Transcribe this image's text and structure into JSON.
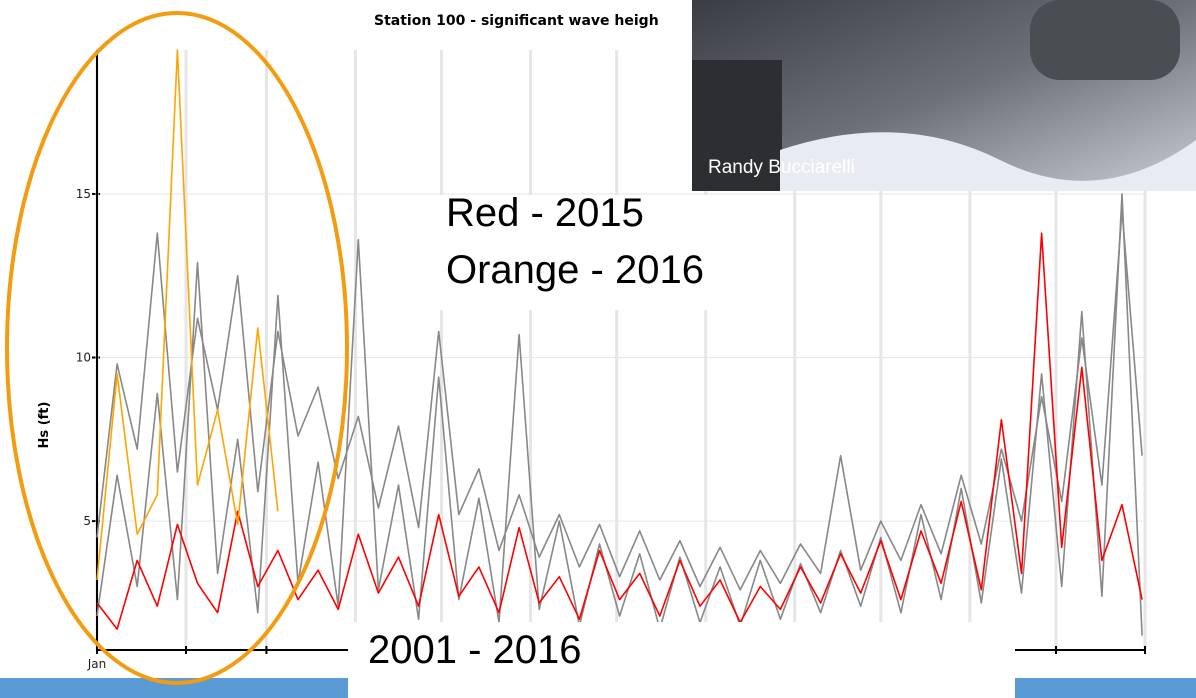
{
  "chart_data": {
    "type": "line",
    "title": "Station 100 - significant wave heigh",
    "y_label": "Hs (ft)",
    "x": [
      0,
      7,
      14,
      21,
      28,
      35,
      42,
      49,
      56,
      63,
      70,
      77,
      84,
      91,
      98,
      105,
      112,
      119,
      126,
      133,
      140,
      147,
      154,
      161,
      168,
      175,
      182,
      189,
      196,
      203,
      210,
      217,
      224,
      231,
      238,
      245,
      252,
      259,
      266,
      273,
      280,
      287,
      294,
      301,
      308,
      315,
      322,
      329,
      336,
      343,
      350,
      357,
      364
    ],
    "xlim": [
      0,
      365
    ],
    "xticks": [
      {
        "value": 0,
        "label": "Jan"
      },
      {
        "value": 31,
        "label": null
      },
      {
        "value": 59,
        "label": null
      },
      {
        "value": 90,
        "label": null
      },
      {
        "value": 120,
        "label": null
      },
      {
        "value": 151,
        "label": null
      },
      {
        "value": 181,
        "label": null
      },
      {
        "value": 212,
        "label": null
      },
      {
        "value": 243,
        "label": null
      },
      {
        "value": 273,
        "label": null
      },
      {
        "value": 304,
        "label": null
      },
      {
        "value": 334,
        "label": null
      },
      {
        "value": 365,
        "label": null
      }
    ],
    "ylim": [
      1.06,
      19.4
    ],
    "yticks": [
      5,
      10,
      15
    ],
    "grid": true,
    "series": [
      {
        "color": "#888888",
        "values": [
          4.5,
          9.8,
          7.2,
          13.8,
          6.5,
          11.2,
          8.4,
          12.5,
          5.9,
          10.8,
          7.6,
          9.1,
          6.3,
          8.2,
          5.4,
          7.9,
          4.8,
          10.8,
          5.2,
          6.6,
          4.1,
          5.8,
          3.9,
          5.2,
          3.6,
          4.9,
          3.3,
          4.7,
          3.2,
          4.4,
          3.0,
          4.2,
          2.9,
          4.1,
          3.1,
          4.3,
          3.4,
          7.0,
          3.5,
          5.0,
          3.8,
          5.5,
          4.0,
          6.4,
          4.3,
          7.2,
          5.0,
          8.8,
          5.6,
          10.6,
          6.1,
          14.5,
          7.0
        ]
      },
      {
        "color": "#888888",
        "values": [
          2.1,
          6.4,
          3.0,
          8.9,
          2.6,
          12.9,
          3.4,
          7.5,
          2.2,
          11.9,
          3.1,
          6.8,
          2.4,
          13.6,
          2.9,
          6.1,
          2.0,
          9.4,
          2.6,
          5.7,
          1.9,
          10.7,
          2.3,
          5.0,
          1.8,
          4.3,
          2.1,
          4.0,
          1.7,
          3.9,
          1.9,
          3.6,
          1.8,
          3.8,
          2.0,
          3.7,
          2.2,
          4.1,
          2.4,
          4.5,
          2.2,
          5.2,
          2.6,
          6.0,
          2.5,
          6.9,
          2.8,
          9.5,
          3.0,
          11.4,
          2.7,
          15.0,
          1.5
        ]
      },
      {
        "color": "#ff0000",
        "values": [
          2.5,
          1.7,
          3.8,
          2.4,
          4.9,
          3.1,
          2.2,
          5.3,
          3.0,
          4.1,
          2.6,
          3.5,
          2.3,
          4.6,
          2.8,
          3.9,
          2.4,
          5.2,
          2.7,
          3.6,
          2.2,
          4.8,
          2.5,
          3.3,
          2.0,
          4.1,
          2.6,
          3.4,
          2.1,
          3.8,
          2.4,
          3.2,
          1.9,
          3.0,
          2.3,
          3.6,
          2.5,
          4.0,
          2.8,
          4.4,
          2.6,
          4.7,
          3.1,
          5.6,
          2.9,
          8.1,
          3.4,
          13.8,
          4.2,
          9.7,
          3.8,
          5.5,
          2.6
        ]
      },
      {
        "color": "#ffa500",
        "values": [
          3.2,
          9.5,
          4.6,
          5.8,
          19.4,
          6.1,
          8.4,
          4.9,
          10.9,
          5.3,
          null,
          null,
          null,
          null,
          null,
          null,
          null,
          null,
          null,
          null,
          null,
          null,
          null,
          null,
          null,
          null,
          null,
          null,
          null,
          null,
          null,
          null,
          null,
          null,
          null,
          null,
          null,
          null,
          null,
          null,
          null,
          null,
          null,
          null,
          null,
          null,
          null,
          null,
          null,
          null,
          null,
          null,
          null
        ]
      }
    ],
    "annotations": [
      "Red - 2015",
      "Orange - 2016",
      "2001 - 2016"
    ]
  },
  "photo_credit": "Randy Bucciarelli"
}
